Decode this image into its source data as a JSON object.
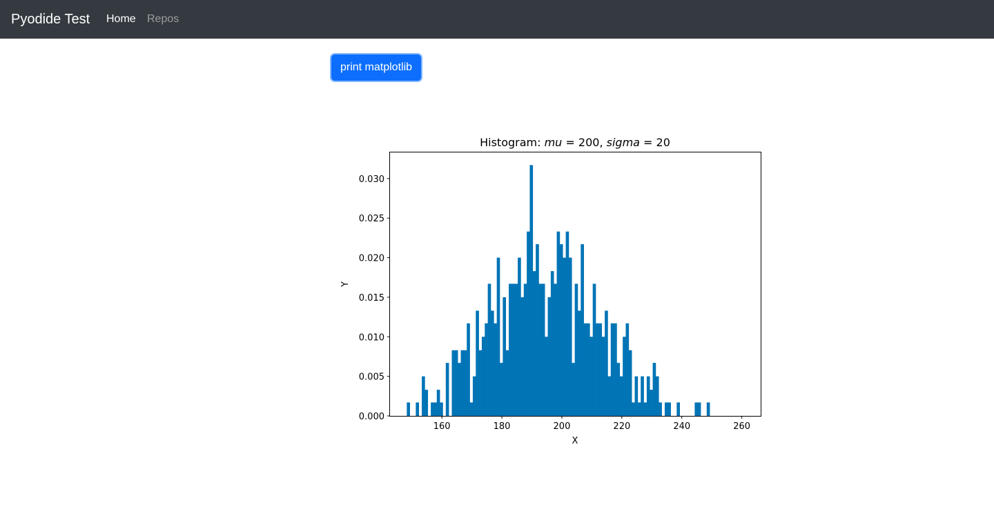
{
  "navbar": {
    "brand": "Pyodide Test",
    "links": [
      {
        "label": "Home",
        "active": true
      },
      {
        "label": "Repos",
        "active": false
      }
    ]
  },
  "button": {
    "label": "print matplotlib"
  },
  "colors": {
    "navbar_bg": "#343a40",
    "button_bg": "#0d6efd",
    "bar_color": "#0174b6"
  },
  "chart_data": {
    "type": "bar",
    "title_plain": "Histogram: ",
    "title_mu_var": "mu",
    "title_mu_eq": " = 200, ",
    "title_sigma_var": "sigma",
    "title_sigma_eq": " = 20",
    "xlabel": "X",
    "ylabel": "Y",
    "xlim": [
      142.7,
      266.3
    ],
    "ylim": [
      0,
      0.0333
    ],
    "xticks": [
      160,
      180,
      200,
      220,
      240,
      260
    ],
    "xtick_labels": [
      "160",
      "180",
      "200",
      "220",
      "240",
      "260"
    ],
    "yticks": [
      0.0,
      0.005,
      0.01,
      0.015,
      0.02,
      0.025,
      0.03
    ],
    "ytick_labels": [
      "0.000",
      "0.005",
      "0.010",
      "0.015",
      "0.020",
      "0.025",
      "0.030"
    ],
    "bin_start": 148.3,
    "bin_width": 1.0,
    "values": [
      0.0017,
      0,
      0,
      0.0017,
      0,
      0.005,
      0.0033,
      0,
      0.0017,
      0.0017,
      0.0033,
      0.0017,
      0,
      0.0067,
      0,
      0.0083,
      0.0083,
      0.0067,
      0.0083,
      0.0083,
      0.0117,
      0.0017,
      0.005,
      0.0133,
      0.0083,
      0.01,
      0.0117,
      0.0167,
      0.0133,
      0.0117,
      0.02,
      0.0067,
      0.015,
      0.0083,
      0.0167,
      0.0167,
      0.0167,
      0.02,
      0.015,
      0.0167,
      0.0233,
      0.0317,
      0.0183,
      0.0217,
      0.0167,
      0.0167,
      0.01,
      0.015,
      0.0183,
      0.0167,
      0.0233,
      0.0217,
      0.02,
      0.0233,
      0.02,
      0.0067,
      0.0167,
      0.0133,
      0.0217,
      0.0117,
      0.0117,
      0.01,
      0.0167,
      0.0117,
      0.0117,
      0.01,
      0.0133,
      0.005,
      0.0117,
      0.0117,
      0.0067,
      0.005,
      0.01,
      0.0117,
      0.0083,
      0.0017,
      0.005,
      0.0017,
      0.005,
      0.0017,
      0.005,
      0.0033,
      0.0067,
      0.005,
      0.0017,
      0,
      0.0017,
      0.0017,
      0,
      0,
      0.0017,
      0,
      0,
      0,
      0,
      0,
      0.0017,
      0.0017,
      0,
      0,
      0.0017
    ]
  }
}
